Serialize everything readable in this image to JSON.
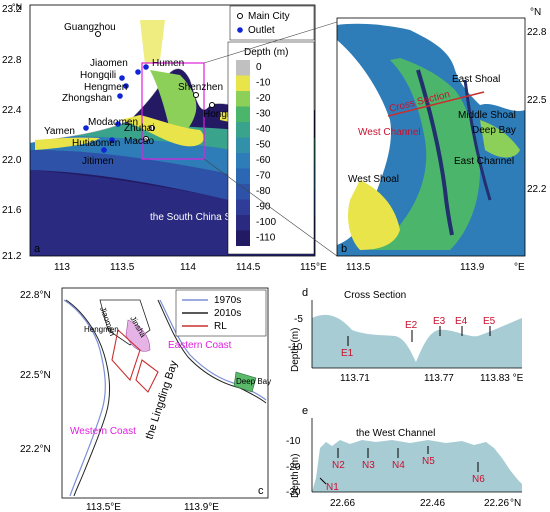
{
  "panel_a": {
    "letter": "a",
    "lat_ticks": [
      "23.2",
      "22.8",
      "22.4",
      "22.0",
      "21.6",
      "21.2"
    ],
    "lon_ticks": [
      "113",
      "113.5",
      "114",
      "114.5",
      "115°E"
    ],
    "north_label": "°N",
    "cities": [
      "Guangzhou",
      "Shenzhen",
      "Hongkong",
      "Zhuhai",
      "Macao"
    ],
    "outlets": [
      "Jiaomen",
      "Humen",
      "Hongqili",
      "Hengmen",
      "Zhongshan",
      "Yamen",
      "Modaomen",
      "Hutiaomen",
      "Jitimen"
    ],
    "sea_label": "the South China Sea",
    "legend": {
      "main_city": "Main City",
      "outlet": "Outlet"
    },
    "depth_legend": {
      "title": "Depth (m)",
      "ticks": [
        "0",
        "-10",
        "-20",
        "-30",
        "-40",
        "-50",
        "-60",
        "-70",
        "-80",
        "-90",
        "-100",
        "-110"
      ],
      "colors": [
        "#c0c0c0",
        "#e8e44a",
        "#8cd05a",
        "#4cb56c",
        "#3aa38c",
        "#3290a8",
        "#2e7db8",
        "#2c67b4",
        "#2e52a8",
        "#2f3d98",
        "#2a2a80",
        "#221a62"
      ]
    }
  },
  "panel_b": {
    "letter": "b",
    "lat_ticks": [
      "22.8",
      "22.5",
      "22.2"
    ],
    "lon_ticks": [
      "113.5",
      "113.9",
      "°E"
    ],
    "north_label": "°N",
    "labels": {
      "east_shoal": "East Shoal",
      "cross_section": "Cross Section",
      "middle_shoal": "Middle Shoal",
      "west_channel": "West Channel",
      "deep_bay": "Deep Bay",
      "east_channel": "East Channel",
      "west_shoal": "West Shoal"
    }
  },
  "panel_c": {
    "letter": "c",
    "lat_ticks": [
      "22.8°N",
      "22.5°N",
      "22.2°N"
    ],
    "lon_ticks": [
      "113.5°E",
      "113.9°E"
    ],
    "legend": [
      "1970s",
      "2010s",
      "RL"
    ],
    "legend_colors": [
      "#7b8fd6",
      "#222222",
      "#c8302e"
    ],
    "labels": {
      "eastern_coast": "Eastern Coast",
      "western_coast": "Western Coast",
      "bay": "the Lingding Bay",
      "hengmen": "Hengmen",
      "jiaomen": "Jiaomen",
      "jinshan": "Jinsha",
      "deep_bay": "Deep Bay"
    }
  },
  "panel_d": {
    "letter": "d",
    "title": "Cross Section",
    "ylabel": "Depth (m)",
    "y_ticks": [
      "-5",
      "-10"
    ],
    "x_ticks": [
      "113.71",
      "113.77",
      "113.83 °E"
    ],
    "markers": [
      "E1",
      "E2",
      "E3",
      "E4",
      "E5"
    ]
  },
  "panel_e": {
    "letter": "e",
    "title": "the West Channel",
    "ylabel": "Depth (m)",
    "y_ticks": [
      "-10",
      "-20",
      "-30"
    ],
    "x_ticks": [
      "22.66",
      "22.46",
      "22.26",
      "°N"
    ],
    "markers": [
      "N1",
      "N2",
      "N3",
      "N4",
      "N5",
      "N6"
    ]
  }
}
